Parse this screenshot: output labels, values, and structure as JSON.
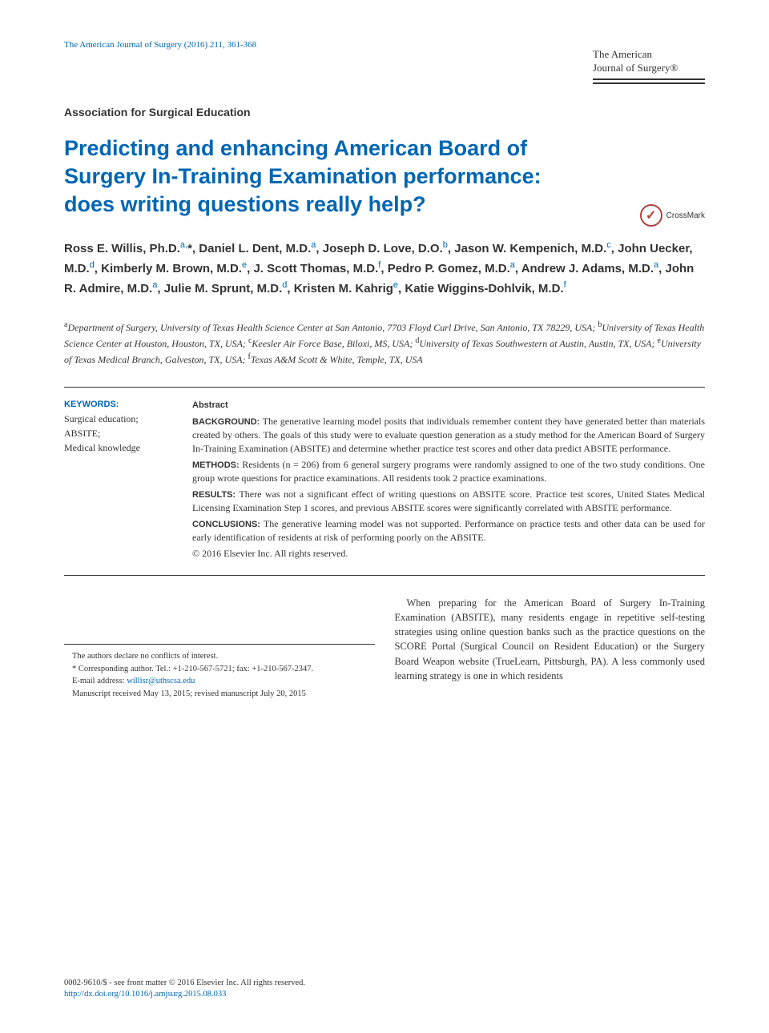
{
  "citation": "The American Journal of Surgery (2016) 211, 361-368",
  "journal_brand": {
    "line1": "The American",
    "line2": "Journal of Surgery®"
  },
  "section_label": "Association for Surgical Education",
  "title": "Predicting and enhancing American Board of Surgery In-Training Examination performance: does writing questions really help?",
  "crossmark_label": "CrossMark",
  "authors_html": "Ross E. Willis, Ph.D.|a,|*, Daniel L. Dent, M.D.|a|, Joseph D. Love, D.O.|b|, Jason W. Kempenich, M.D.|c|, John Uecker, M.D.|d|, Kimberly M. Brown, M.D.|e|, J. Scott Thomas, M.D.|f|, Pedro P. Gomez, M.D.|a|, Andrew J. Adams, M.D.|a|, John R. Admire, M.D.|a|, Julie M. Sprunt, M.D.|d|, Kristen M. Kahrig|e|, Katie Wiggins-Dohlvik, M.D.|f|",
  "affiliations": "aDepartment of Surgery, University of Texas Health Science Center at San Antonio, 7703 Floyd Curl Drive, San Antonio, TX 78229, USA; bUniversity of Texas Health Science Center at Houston, Houston, TX, USA; cKeesler Air Force Base, Biloxi, MS, USA; dUniversity of Texas Southwestern at Austin, Austin, TX, USA; eUniversity of Texas Medical Branch, Galveston, TX, USA; fTexas A&M Scott & White, Temple, TX, USA",
  "keywords": {
    "heading": "KEYWORDS:",
    "items": "Surgical education;\nABSITE;\nMedical knowledge"
  },
  "abstract": {
    "heading": "Abstract",
    "sections": [
      {
        "label": "BACKGROUND:",
        "text": "The generative learning model posits that individuals remember content they have generated better than materials created by others. The goals of this study were to evaluate question generation as a study method for the American Board of Surgery In-Training Examination (ABSITE) and determine whether practice test scores and other data predict ABSITE performance."
      },
      {
        "label": "METHODS:",
        "text": "Residents (n = 206) from 6 general surgery programs were randomly assigned to one of the two study conditions. One group wrote questions for practice examinations. All residents took 2 practice examinations."
      },
      {
        "label": "RESULTS:",
        "text": "There was not a significant effect of writing questions on ABSITE score. Practice test scores, United States Medical Licensing Examination Step 1 scores, and previous ABSITE scores were significantly correlated with ABSITE performance."
      },
      {
        "label": "CONCLUSIONS:",
        "text": "The generative learning model was not supported. Performance on practice tests and other data can be used for early identification of residents at risk of performing poorly on the ABSITE."
      }
    ],
    "copyright": "© 2016 Elsevier Inc. All rights reserved."
  },
  "footnotes": {
    "conflict": "The authors declare no conflicts of interest.",
    "corresponding": "* Corresponding author. Tel.: +1-210-567-5721; fax: +1-210-567-2347.",
    "email_label": "E-mail address: ",
    "email": "willisr@uthscsa.edu",
    "manuscript": "Manuscript received May 13, 2015; revised manuscript July 20, 2015"
  },
  "body_text": "When preparing for the American Board of Surgery In-Training Examination (ABSITE), many residents engage in repetitive self-testing strategies using online question banks such as the practice questions on the SCORE Portal (Surgical Council on Resident Education) or the Surgery Board Weapon website (TrueLearn, Pittsburgh, PA). A less commonly used learning strategy is one in which residents",
  "footer": {
    "issn": "0002-9610/$ - see front matter © 2016 Elsevier Inc. All rights reserved.",
    "doi": "http://dx.doi.org/10.1016/j.amjsurg.2015.08.033"
  }
}
